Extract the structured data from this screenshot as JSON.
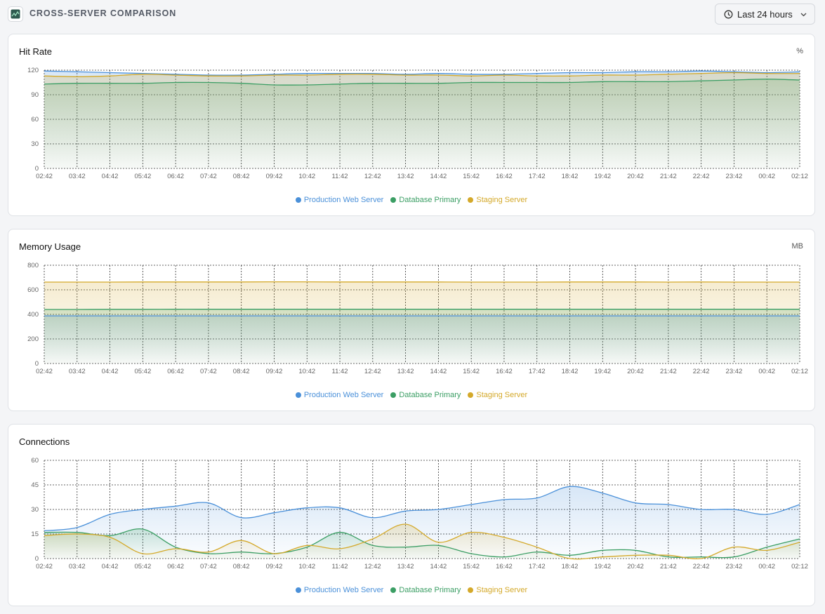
{
  "header": {
    "title": "CROSS-SERVER COMPARISON",
    "icon": "server-monitor-icon",
    "time_range": "Last 24 hours"
  },
  "colors": {
    "production": "#4a90d9",
    "database": "#3b9e64",
    "staging": "#d4a92a"
  },
  "charts": [
    {
      "title": "Hit Rate",
      "unit": "%",
      "chart_data": {
        "type": "area",
        "x": [
          "02:42",
          "03:42",
          "04:42",
          "05:42",
          "06:42",
          "07:42",
          "08:42",
          "09:42",
          "10:42",
          "11:42",
          "12:42",
          "13:42",
          "14:42",
          "15:42",
          "16:42",
          "17:42",
          "18:42",
          "19:42",
          "20:42",
          "21:42",
          "22:42",
          "23:42",
          "00:42",
          "02:12"
        ],
        "yticks": [
          0,
          30,
          60,
          90,
          120
        ],
        "ylim": [
          0,
          120
        ],
        "grid": true,
        "legend": "bottom-center",
        "series": [
          {
            "name": "Production Web Server",
            "key": "production",
            "values": [
              119,
              118,
              117,
              116,
              115,
              114,
              114,
              115,
              116,
              116,
              116,
              115,
              116,
              115,
              115,
              116,
              117,
              117,
              118,
              118,
              119,
              118,
              117,
              118
            ]
          },
          {
            "name": "Database Primary",
            "key": "database",
            "values": [
              103,
              104,
              104,
              104,
              105,
              105,
              104,
              102,
              102,
              103,
              104,
              104,
              104,
              105,
              105,
              105,
              105,
              106,
              106,
              106,
              107,
              108,
              109,
              108
            ]
          },
          {
            "name": "Staging Server",
            "key": "staging",
            "values": [
              113,
              112,
              113,
              115,
              114,
              113,
              113,
              114,
              114,
              115,
              115,
              114,
              114,
              113,
              114,
              113,
              113,
              114,
              114,
              115,
              116,
              117,
              116,
              116
            ]
          }
        ]
      }
    },
    {
      "title": "Memory Usage",
      "unit": "MB",
      "chart_data": {
        "type": "area",
        "x": [
          "02:42",
          "03:42",
          "04:42",
          "05:42",
          "06:42",
          "07:42",
          "08:42",
          "09:42",
          "10:42",
          "11:42",
          "12:42",
          "13:42",
          "14:42",
          "15:42",
          "16:42",
          "17:42",
          "18:42",
          "19:42",
          "20:42",
          "21:42",
          "22:42",
          "23:42",
          "00:42",
          "02:12"
        ],
        "yticks": [
          0,
          200,
          400,
          600,
          800
        ],
        "ylim": [
          0,
          800
        ],
        "grid": true,
        "legend": "bottom-center",
        "series": [
          {
            "name": "Production Web Server",
            "key": "production",
            "values": [
              388,
              388,
              388,
              388,
              388,
              388,
              388,
              388,
              388,
              388,
              388,
              388,
              388,
              388,
              388,
              388,
              388,
              388,
              388,
              388,
              388,
              388,
              388,
              388
            ]
          },
          {
            "name": "Database Primary",
            "key": "database",
            "values": [
              440,
              440,
              441,
              441,
              442,
              442,
              442,
              442,
              442,
              442,
              442,
              442,
              442,
              442,
              442,
              442,
              442,
              442,
              442,
              442,
              442,
              442,
              442,
              442
            ]
          },
          {
            "name": "Staging Server",
            "key": "staging",
            "values": [
              663,
              663,
              663,
              664,
              664,
              664,
              664,
              665,
              665,
              664,
              664,
              664,
              664,
              663,
              663,
              663,
              664,
              664,
              664,
              663,
              664,
              663,
              663,
              663
            ]
          }
        ]
      }
    },
    {
      "title": "Connections",
      "unit": "",
      "chart_data": {
        "type": "area",
        "x": [
          "02:42",
          "03:42",
          "04:42",
          "05:42",
          "06:42",
          "07:42",
          "08:42",
          "09:42",
          "10:42",
          "11:42",
          "12:42",
          "13:42",
          "14:42",
          "15:42",
          "16:42",
          "17:42",
          "18:42",
          "19:42",
          "20:42",
          "21:42",
          "22:42",
          "23:42",
          "00:42",
          "02:12"
        ],
        "yticks": [
          0,
          15,
          30,
          45,
          60
        ],
        "ylim": [
          0,
          60
        ],
        "grid": true,
        "legend": "bottom-center",
        "series": [
          {
            "name": "Production Web Server",
            "key": "production",
            "values": [
              17,
              19,
              27,
              30,
              32,
              34,
              25,
              28,
              31,
              31,
              25,
              29,
              30,
              33,
              36,
              37,
              44,
              40,
              34,
              33,
              30,
              30,
              27,
              33
            ]
          },
          {
            "name": "Database Primary",
            "key": "database",
            "values": [
              16,
              16,
              14,
              18,
              7,
              3,
              4,
              3,
              7,
              16,
              8,
              7,
              8,
              3,
              1,
              4,
              2,
              5,
              5,
              1,
              1,
              1,
              7,
              12
            ]
          },
          {
            "name": "Staging Server",
            "key": "staging",
            "values": [
              14,
              15,
              13,
              3,
              6,
              4,
              11,
              3,
              8,
              6,
              12,
              21,
              10,
              16,
              13,
              7,
              0,
              1,
              2,
              2,
              0,
              7,
              5,
              10
            ]
          }
        ]
      }
    }
  ]
}
